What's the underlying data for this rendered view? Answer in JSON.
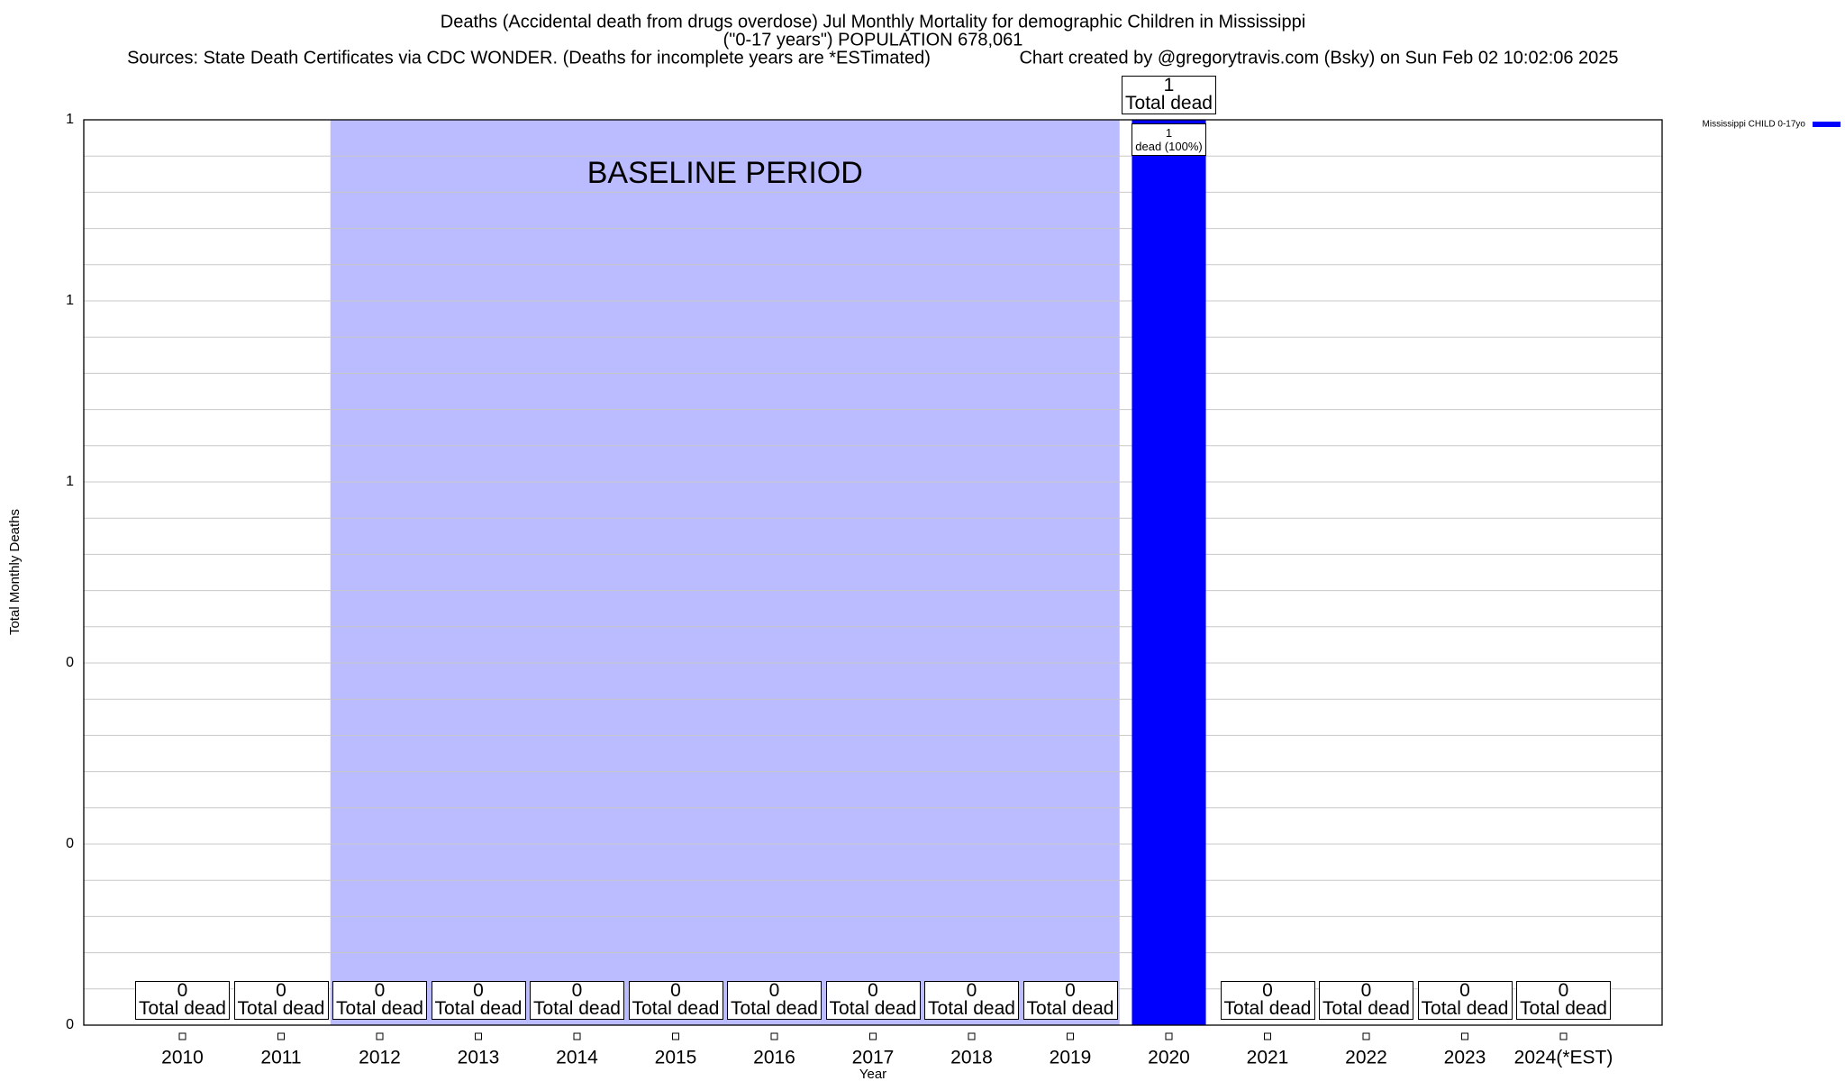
{
  "chart_data": {
    "type": "bar",
    "title": "Deaths (Accidental death from drugs overdose) Jul Monthly Mortality for demographic Children in Mississippi",
    "subtitle": "(\"0-17 years\") POPULATION 678,061",
    "sources": "Sources: State Death Certificates via CDC WONDER. (Deaths for incomplete years are *ESTimated)",
    "credit": "Chart created by @gregorytravis.com (Bsky) on Sun Feb 02 10:02:06 2025",
    "xlabel": "Year",
    "ylabel": "Total Monthly Deaths",
    "categories": [
      "2010",
      "2011",
      "2012",
      "2013",
      "2014",
      "2015",
      "2016",
      "2017",
      "2018",
      "2019",
      "2020",
      "2021",
      "2022",
      "2023",
      "2024(*EST)"
    ],
    "series": [
      {
        "name": "Mississippi CHILD 0-17yo",
        "color": "#0000ff",
        "values": [
          0,
          0,
          0,
          0,
          0,
          0,
          0,
          0,
          0,
          0,
          1,
          0,
          0,
          0,
          0
        ],
        "value_labels": [
          null,
          null,
          null,
          null,
          null,
          null,
          null,
          null,
          null,
          null,
          "1\ndead (100%)",
          null,
          null,
          null,
          null
        ]
      }
    ],
    "value_labels": [
      "0\nTotal dead",
      "0\nTotal dead",
      "0\nTotal dead",
      "0\nTotal dead",
      "0\nTotal dead",
      "0\nTotal dead",
      "0\nTotal dead",
      "0\nTotal dead",
      "0\nTotal dead",
      "0\nTotal dead",
      "1\nTotal dead",
      "0\nTotal dead",
      "0\nTotal dead",
      "0\nTotal dead",
      "0\nTotal dead"
    ],
    "ylim": [
      0,
      1
    ],
    "yticks": [
      0,
      {
        "value": 0.2,
        "label": "0"
      },
      {
        "value": 0.4,
        "label": "0"
      },
      {
        "value": 0.6,
        "label": "1"
      },
      {
        "value": 0.8,
        "label": "1"
      },
      1
    ],
    "grid": true,
    "minor_grid_per_tick": 5,
    "legend": "top-right",
    "baseline": {
      "label": "BASELINE PERIOD",
      "start": "2012",
      "end": "2019",
      "color": "#bbbbff"
    }
  }
}
